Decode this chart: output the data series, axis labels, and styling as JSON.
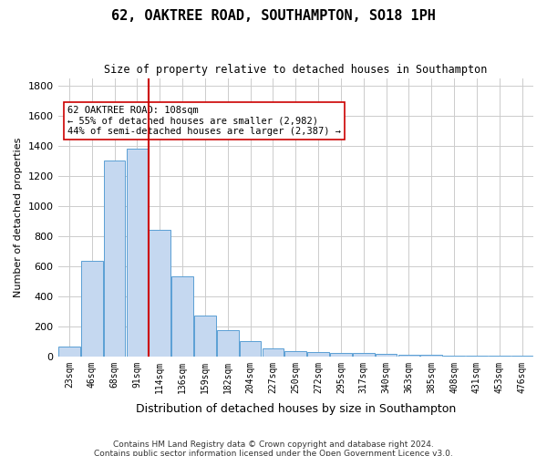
{
  "title": "62, OAKTREE ROAD, SOUTHAMPTON, SO18 1PH",
  "subtitle": "Size of property relative to detached houses in Southampton",
  "xlabel": "Distribution of detached houses by size in Southampton",
  "ylabel": "Number of detached properties",
  "property_size": 108,
  "property_label": "62 OAKTREE ROAD: 108sqm",
  "pct_smaller": "55% of detached houses are smaller (2,982)",
  "pct_larger": "44% of semi-detached houses are larger (2,387)",
  "red_line_x": 4,
  "footnote1": "Contains HM Land Registry data © Crown copyright and database right 2024.",
  "footnote2": "Contains public sector information licensed under the Open Government Licence v3.0.",
  "categories": [
    "23sqm",
    "46sqm",
    "68sqm",
    "91sqm",
    "114sqm",
    "136sqm",
    "159sqm",
    "182sqm",
    "204sqm",
    "227sqm",
    "250sqm",
    "272sqm",
    "295sqm",
    "317sqm",
    "340sqm",
    "363sqm",
    "385sqm",
    "408sqm",
    "431sqm",
    "453sqm",
    "476sqm"
  ],
  "values": [
    65,
    635,
    1300,
    1380,
    840,
    530,
    270,
    175,
    100,
    55,
    35,
    30,
    25,
    20,
    15,
    10,
    10,
    5,
    5,
    5,
    5
  ],
  "bar_color": "#c5d8f0",
  "bar_edge_color": "#5a9fd4",
  "red_line_color": "#cc0000",
  "background_color": "#ffffff",
  "grid_color": "#cccccc",
  "ylim": [
    0,
    1850
  ],
  "yticks": [
    0,
    200,
    400,
    600,
    800,
    1000,
    1200,
    1400,
    1600,
    1800
  ]
}
